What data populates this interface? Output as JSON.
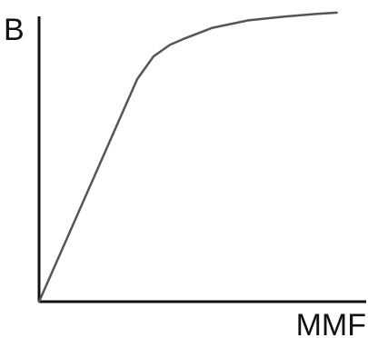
{
  "chart_data": {
    "type": "line",
    "title": "",
    "xlabel": "MMF",
    "ylabel": "B",
    "xlim": [
      0,
      10
    ],
    "ylim": [
      0,
      10
    ],
    "grid": false,
    "legend": "none",
    "series": [
      {
        "x": [
          0,
          1,
          2,
          3,
          3.5,
          4,
          4.4,
          5.3,
          6.4,
          7.5,
          8.5,
          9.1
        ],
        "y": [
          0,
          2.6,
          5.2,
          7.8,
          8.6,
          9.0,
          9.2,
          9.6,
          9.86,
          9.99,
          10.09,
          10.13
        ],
        "color": "#555555"
      }
    ],
    "axis_color": "#111111"
  }
}
